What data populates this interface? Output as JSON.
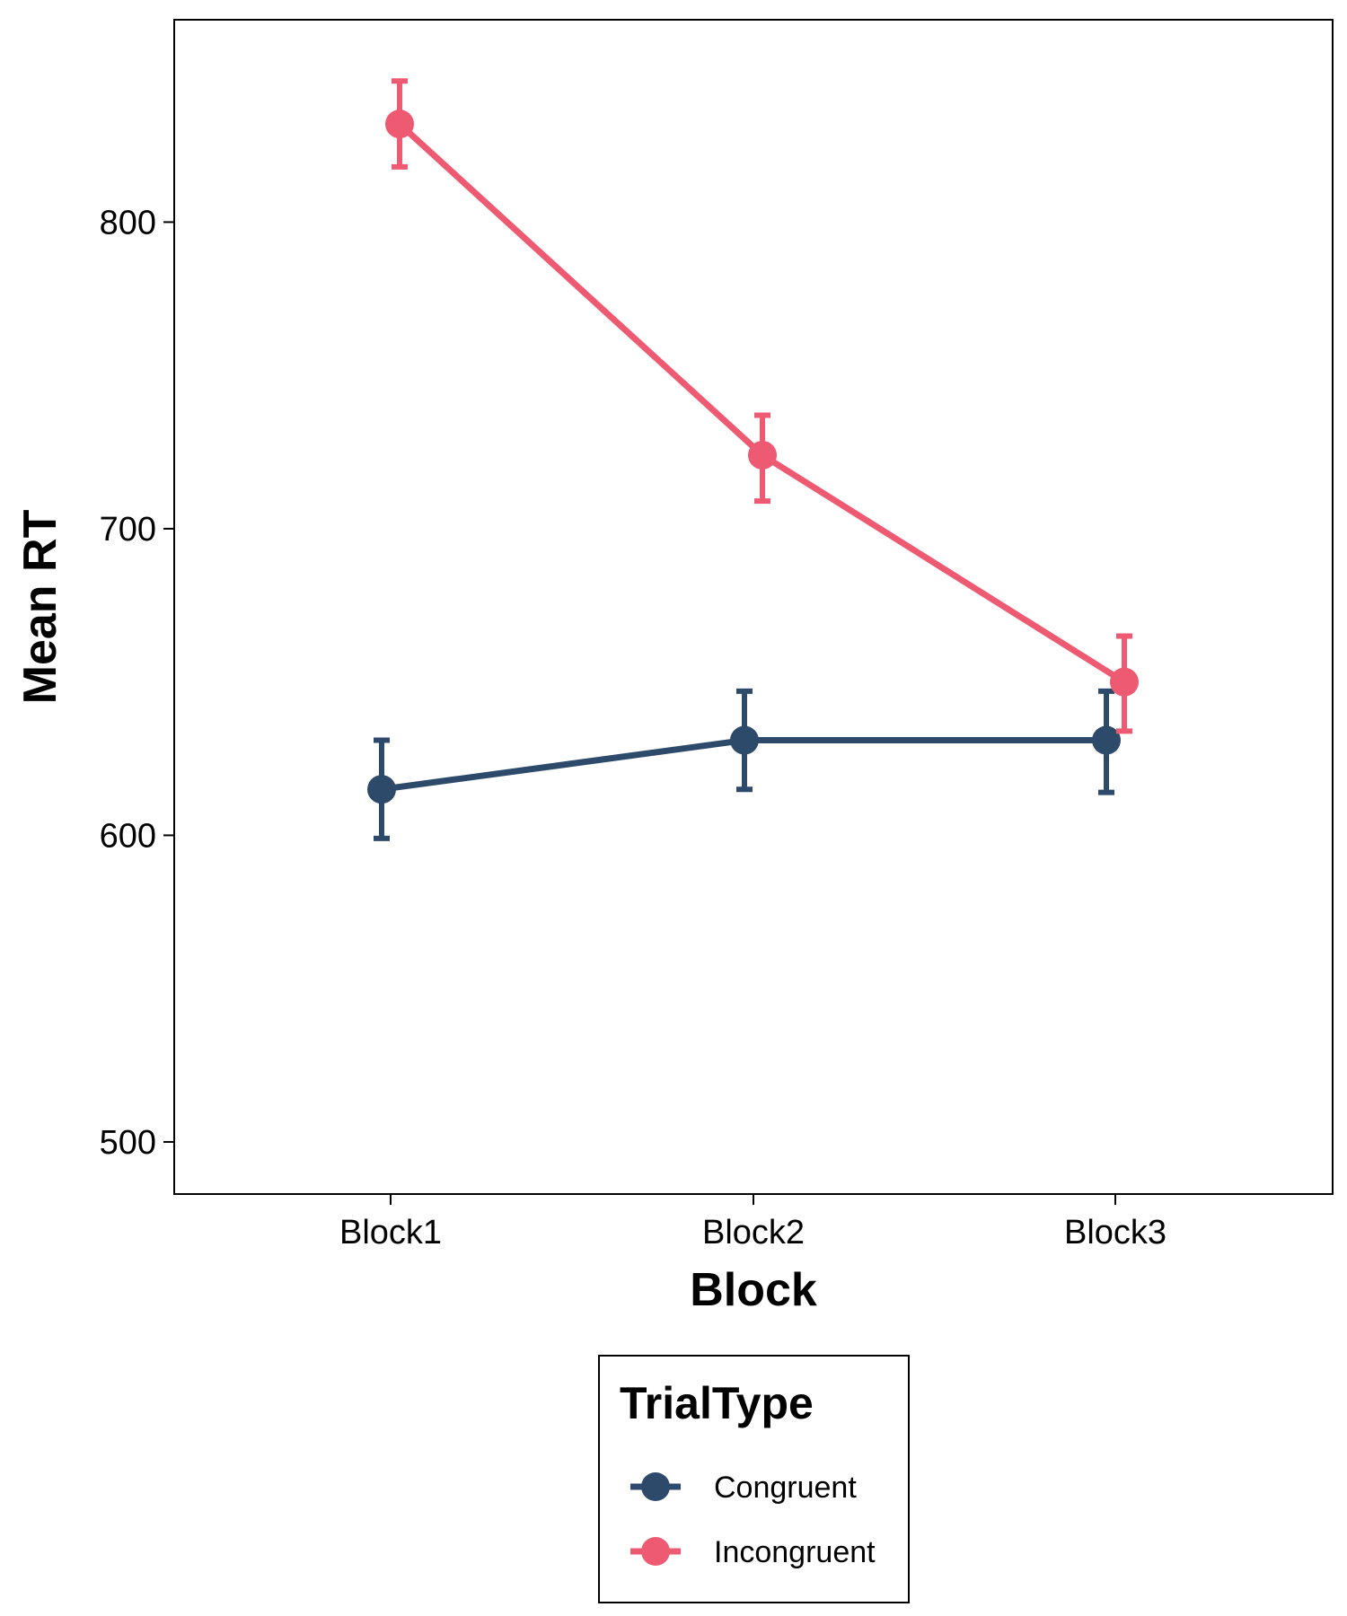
{
  "chart_data": {
    "type": "line",
    "categories": [
      "Block1",
      "Block2",
      "Block3"
    ],
    "xlabel": "Block",
    "ylabel": "Mean RT",
    "ylim": [
      483,
      866
    ],
    "yticks": [
      500,
      600,
      700,
      800
    ],
    "grid": false,
    "legend": {
      "title": "TrialType",
      "position": "bottom"
    },
    "series": [
      {
        "name": "Congruent",
        "color": "#2D4A6B",
        "values": [
          615,
          631,
          631
        ],
        "err_low": [
          599,
          615,
          614
        ],
        "err_high": [
          631,
          647,
          647
        ]
      },
      {
        "name": "Incongruent",
        "color": "#EE5A72",
        "values": [
          832,
          724,
          650
        ],
        "err_low": [
          818,
          709,
          634
        ],
        "err_high": [
          846,
          737,
          665
        ]
      }
    ]
  }
}
